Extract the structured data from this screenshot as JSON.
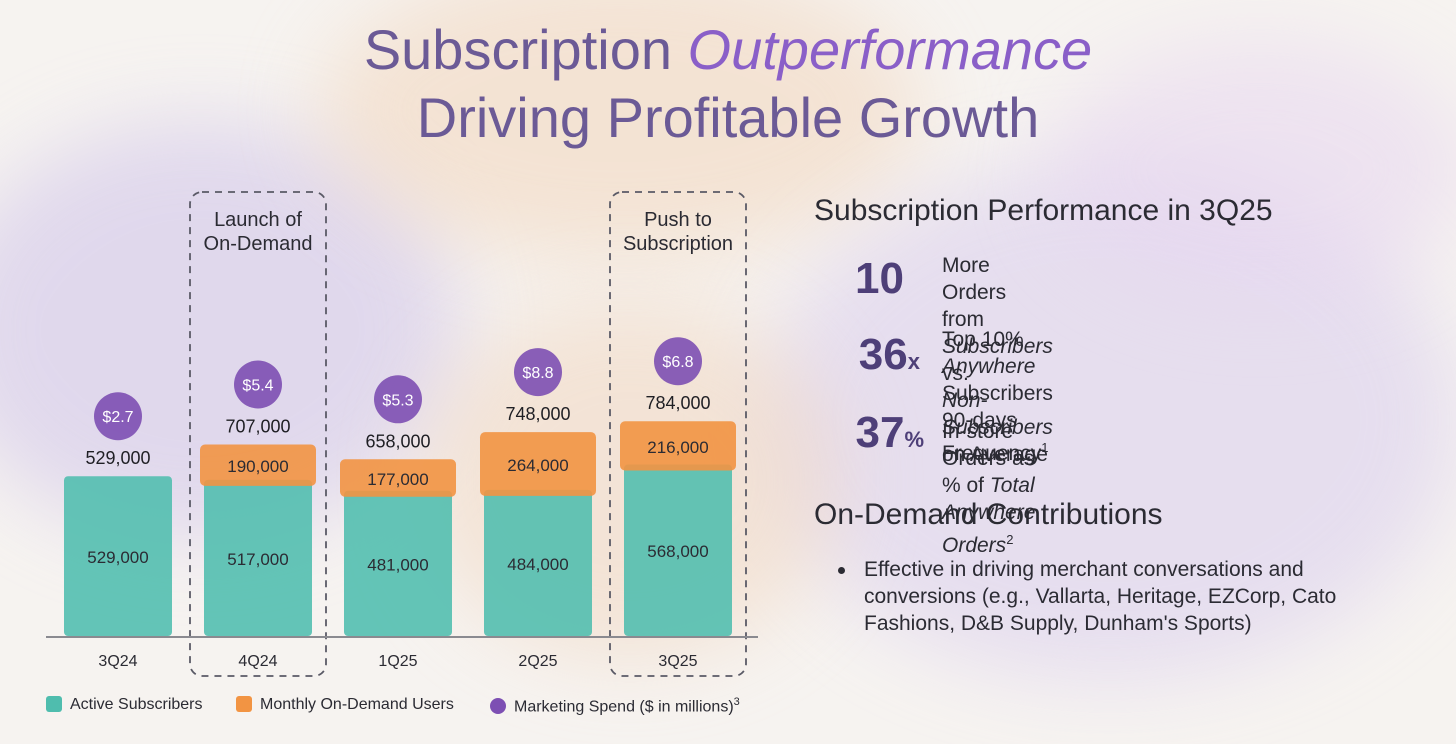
{
  "title": {
    "line1_plain": "Subscription ",
    "line1_highlight": "Outperformance",
    "line2": "Driving Profitable Growth"
  },
  "colors": {
    "active": "#4fbdae",
    "ondemand": "#f29443",
    "marketing": "#7d4fb3",
    "title": "#6b5a96",
    "axis": "#8a8a90"
  },
  "chart_data": {
    "type": "bar",
    "stacked": true,
    "categories": [
      "3Q24",
      "4Q24",
      "1Q25",
      "2Q25",
      "3Q25"
    ],
    "series": [
      {
        "name": "Active Subscribers",
        "values": [
          529000,
          517000,
          481000,
          484000,
          568000
        ],
        "labels": [
          "529,000",
          "517,000",
          "481,000",
          "484,000",
          "568,000"
        ]
      },
      {
        "name": "Monthly On-Demand Users",
        "values": [
          0,
          190000,
          177000,
          264000,
          216000
        ],
        "labels": [
          "",
          "190,000",
          "177,000",
          "264,000",
          "216,000"
        ]
      }
    ],
    "totals": [
      "529,000",
      "707,000",
      "658,000",
      "748,000",
      "784,000"
    ],
    "total_values": [
      529000,
      707000,
      658000,
      748000,
      784000
    ],
    "marketing_spend": {
      "name": "Marketing Spend ($ in millions)",
      "values": [
        2.7,
        5.4,
        5.3,
        8.8,
        6.8
      ],
      "labels": [
        "$2.7",
        "$5.4",
        "$5.3",
        "$8.8",
        "$6.8"
      ]
    },
    "annotations": [
      {
        "category": "4Q24",
        "text_line1": "Launch of",
        "text_line2": "On-Demand"
      },
      {
        "category": "3Q25",
        "text_line1": "Push to",
        "text_line2": "Subscription"
      }
    ],
    "ylim": [
      0,
      800000
    ]
  },
  "legend": [
    {
      "label": "Active Subscribers"
    },
    {
      "label": "Monthly On-Demand Users"
    },
    {
      "label": "Marketing Spend ($ in millions)",
      "sup": "3"
    }
  ],
  "performance": {
    "heading": "Subscription Performance in 3Q25",
    "stats": [
      {
        "num": "10",
        "suffix": "",
        "line1_a": "More Orders from ",
        "line1_i": "Subscribers",
        "line1_b": " vs.",
        "line2_i": "Non-Subscribers",
        "line2_b": " on Average",
        "sup": ""
      },
      {
        "num": "36",
        "suffix": "x",
        "line1_a": "Top 10% ",
        "line1_i": "Anywhere",
        "line1_b": " Subscribers 90-days",
        "line2_i": "",
        "line2_b": "Frequency",
        "sup": "1"
      },
      {
        "num": "37",
        "suffix": "%",
        "line1_a": "In-store Orders as % of ",
        "line1_i": "Total Anywhere Orders",
        "line1_b": "",
        "line2_i": "",
        "line2_b": "",
        "sup": "2"
      }
    ]
  },
  "ondemand": {
    "heading": "On-Demand Contributions",
    "bullet": "Effective in driving merchant conversations and conversions (e.g., Vallarta, Heritage, EZCorp, Cato Fashions, D&B Supply, Dunham's Sports)"
  }
}
